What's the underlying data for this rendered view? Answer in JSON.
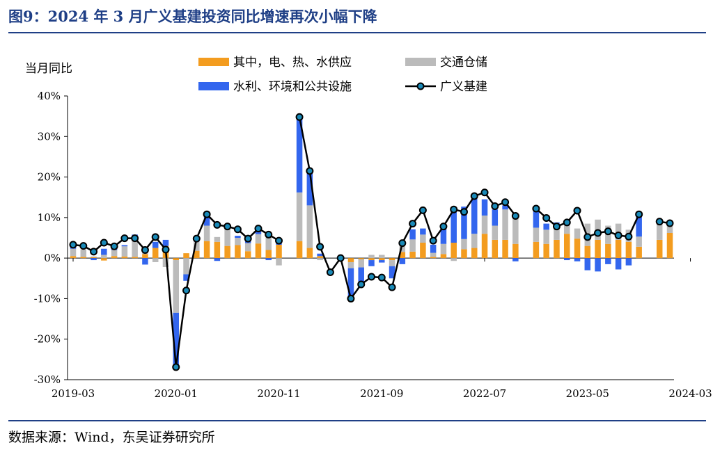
{
  "title": "图9：2024 年 3 月广义基建投资同比增速再次小幅下降",
  "source": "数据来源：Wind，东吴证券研究所",
  "chart_data": {
    "type": "bar",
    "ylabel": "当月同比",
    "ylim": [
      -30,
      40
    ],
    "yticks": [
      -30,
      -20,
      -10,
      0,
      10,
      20,
      30,
      40
    ],
    "ytick_labels": [
      "-30%",
      "-20%",
      "-10%",
      "0%",
      "10%",
      "20%",
      "30%",
      "40%"
    ],
    "xtick_labels": [
      "2019-03",
      "2020-01",
      "2020-11",
      "2021-09",
      "2022-07",
      "2023-05",
      "2024-03"
    ],
    "xtick_indices": [
      0,
      10,
      20,
      30,
      40,
      50,
      60
    ],
    "series": [
      {
        "name": "其中，电、热、水供应",
        "type": "bar",
        "color": "#f39c1f",
        "values": [
          0.5,
          0.3,
          0.2,
          -0.6,
          0.5,
          0.4,
          0.3,
          1.0,
          2.5,
          3.0,
          -0.5,
          1.2,
          1.8,
          4.2,
          4.0,
          3.0,
          3.2,
          1.7,
          3.6,
          2.0,
          3.3,
          null,
          4.2,
          2.5,
          0.5,
          null,
          null,
          -1.0,
          -0.3,
          -0.5,
          -0.5,
          -0.5,
          1.5,
          1.6,
          3.8,
          0.3,
          1.0,
          3.8,
          2.2,
          2.5,
          6.0,
          4.5,
          4.5,
          3.5,
          null,
          4.0,
          3.5,
          4.5,
          6.0,
          4.8,
          3.0,
          4.5,
          3.5,
          4.5,
          4.0,
          2.8,
          null,
          4.5,
          6.2
        ]
      },
      {
        "name": "交通仓储",
        "type": "bar",
        "color": "#bbbbbb",
        "values": [
          1.8,
          1.8,
          0.2,
          0.8,
          1.5,
          2.5,
          4.0,
          0.5,
          -1.0,
          -2.2,
          -13.0,
          -4.0,
          2.3,
          3.8,
          1.2,
          4.5,
          1.8,
          2.0,
          2.3,
          3.5,
          -1.8,
          null,
          12.0,
          10.5,
          -0.5,
          null,
          null,
          -1.5,
          -2.0,
          0.8,
          0.8,
          -1.5,
          2.0,
          3.0,
          2.0,
          1.0,
          2.5,
          -0.7,
          2.5,
          3.5,
          4.5,
          3.5,
          7.5,
          7.0,
          null,
          3.5,
          3.5,
          4.0,
          2.5,
          2.5,
          5.5,
          5.0,
          4.5,
          4.0,
          3.0,
          2.5,
          null,
          4.0,
          2.0
        ]
      },
      {
        "name": "水利、环境和公共设施",
        "type": "bar",
        "color": "#3366ee",
        "values": [
          0.8,
          null,
          -0.5,
          1.5,
          0.6,
          0.3,
          1.5,
          -1.6,
          1.5,
          1.5,
          -14.0,
          -1.6,
          0.5,
          2.5,
          -0.7,
          0.5,
          0.5,
          1.0,
          1.2,
          -0.5,
          0.5,
          null,
          18.5,
          8.5,
          0.6,
          null,
          null,
          -7.5,
          -4.0,
          -1.5,
          -0.6,
          -3.0,
          -1.5,
          2.5,
          1.5,
          2.0,
          4.0,
          8.0,
          8.0,
          9.0,
          4.0,
          4.0,
          1.0,
          -0.8,
          null,
          5.0,
          1.5,
          0.3,
          -0.5,
          -0.8,
          -3.0,
          -3.3,
          -1.5,
          -2.8,
          -1.8,
          5.0,
          null,
          0.5,
          0.5
        ]
      },
      {
        "name": "广义基建",
        "type": "line",
        "color": "#000000",
        "marker": "#1a8ab8",
        "values": [
          3.3,
          3.0,
          1.6,
          3.8,
          2.9,
          4.9,
          4.9,
          2.0,
          5.2,
          2.1,
          -26.9,
          -8.0,
          4.8,
          10.8,
          8.2,
          7.8,
          7.1,
          4.8,
          7.3,
          5.8,
          4.3,
          null,
          34.8,
          21.5,
          2.8,
          -3.5,
          0.0,
          -10.0,
          -6.5,
          -4.6,
          -4.8,
          -7.2,
          3.7,
          8.5,
          11.8,
          4.3,
          7.8,
          12.0,
          11.4,
          15.3,
          16.2,
          12.8,
          13.8,
          10.4,
          null,
          12.2,
          9.9,
          7.8,
          8.8,
          11.7,
          5.2,
          6.2,
          6.6,
          5.6,
          5.3,
          10.8,
          null,
          9.0,
          8.6
        ]
      }
    ],
    "legend": "top"
  }
}
